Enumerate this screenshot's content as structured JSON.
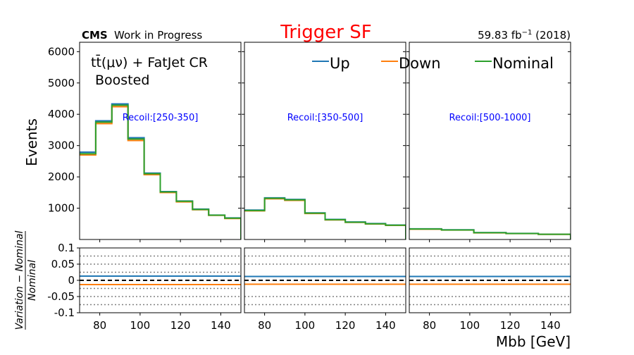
{
  "header": {
    "experiment": "CMS",
    "status": "Work in Progress",
    "title": "Trigger SF",
    "lumi_prefix": "59.83 fb",
    "lumi_exp": "−1",
    "lumi_suffix": " (2018)"
  },
  "labels": {
    "region_line1_pre": "tt̄(μν) + FatJet CR",
    "region_line2": "Boosted",
    "ylabel": "Events",
    "ratio_ylabel_num": "Variation − Nominal",
    "ratio_ylabel_den": "Nominal",
    "xlabel": "Mbb [GeV]"
  },
  "colors": {
    "Up": "#1f77b4",
    "Down": "#ff7f0e",
    "Nominal": "#2ca02c",
    "title": "#ff0000",
    "recoil": "#0000ff"
  },
  "chart_data": {
    "type": "line",
    "drawstyle": "steps",
    "title": "Trigger SF",
    "xlabel": "Mbb [GeV]",
    "ylabel": "Events",
    "xlim": [
      70,
      150
    ],
    "ylim": [
      0,
      6300
    ],
    "yticks": [
      1000,
      2000,
      3000,
      4000,
      5000,
      6000
    ],
    "xticks": [
      80,
      100,
      120,
      140
    ],
    "legend": [
      "Up",
      "Down",
      "Nominal"
    ],
    "legend_loc": "top-right",
    "panels": [
      {
        "recoil_label": "Recoil:[250-350]",
        "bin_edges": [
          70,
          78,
          86,
          94,
          102,
          110,
          118,
          126,
          134,
          142,
          150
        ],
        "series": [
          {
            "name": "Up",
            "values": [
              2790,
              3790,
              4330,
              3250,
              2120,
              1530,
              1230,
              970,
              780,
              690
            ]
          },
          {
            "name": "Down",
            "values": [
              2700,
              3700,
              4240,
              3160,
              2070,
              1500,
              1200,
              950,
              770,
              670
            ]
          },
          {
            "name": "Nominal",
            "values": [
              2740,
              3750,
              4290,
              3210,
              2100,
              1520,
              1220,
              960,
              775,
              680
            ]
          }
        ]
      },
      {
        "recoil_label": "Recoil:[350-500]",
        "bin_edges": [
          70,
          80,
          90,
          100,
          110,
          120,
          130,
          140,
          150
        ],
        "series": [
          {
            "name": "Up",
            "values": [
              940,
              1330,
              1280,
              850,
              640,
              560,
              510,
              460
            ]
          },
          {
            "name": "Down",
            "values": [
              915,
              1300,
              1250,
              830,
              625,
              545,
              495,
              450
            ]
          },
          {
            "name": "Nominal",
            "values": [
              925,
              1315,
              1265,
              840,
              632,
              552,
              502,
              455
            ]
          }
        ]
      },
      {
        "recoil_label": "Recoil:[500-1000]",
        "bin_edges": [
          70,
          86,
          102,
          118,
          134,
          150
        ],
        "series": [
          {
            "name": "Up",
            "values": [
              340,
              310,
              220,
              195,
              170
            ]
          },
          {
            "name": "Down",
            "values": [
              330,
              300,
              212,
              188,
              164
            ]
          },
          {
            "name": "Nominal",
            "values": [
              335,
              305,
              216,
              191,
              167
            ]
          }
        ]
      }
    ],
    "ratio": {
      "ylim": [
        -0.1,
        0.1
      ],
      "yticks": [
        0.1,
        0.05,
        0,
        -0.05,
        -0.1
      ],
      "ytick_labels": [
        "0.1",
        "0.05",
        "0",
        "-0.05",
        "-0.1"
      ],
      "grid_dotted": [
        0.075,
        0.05,
        0.025,
        -0.025,
        -0.05,
        -0.075
      ],
      "panels": [
        {
          "grid_dotted": [
            0.075,
            0.05,
            0.025,
            -0.025,
            -0.05,
            -0.075
          ],
          "Up": 0.013,
          "Down": -0.013,
          "Nominal": 0
        },
        {
          "grid_dotted": [
            0.075,
            0.05,
            -0.05,
            -0.075
          ],
          "Up": 0.012,
          "Down": -0.012,
          "Nominal": 0
        },
        {
          "grid_dotted": [
            0.075,
            0.05,
            -0.05,
            -0.075
          ],
          "Up": 0.012,
          "Down": -0.012,
          "Nominal": 0
        }
      ]
    }
  }
}
